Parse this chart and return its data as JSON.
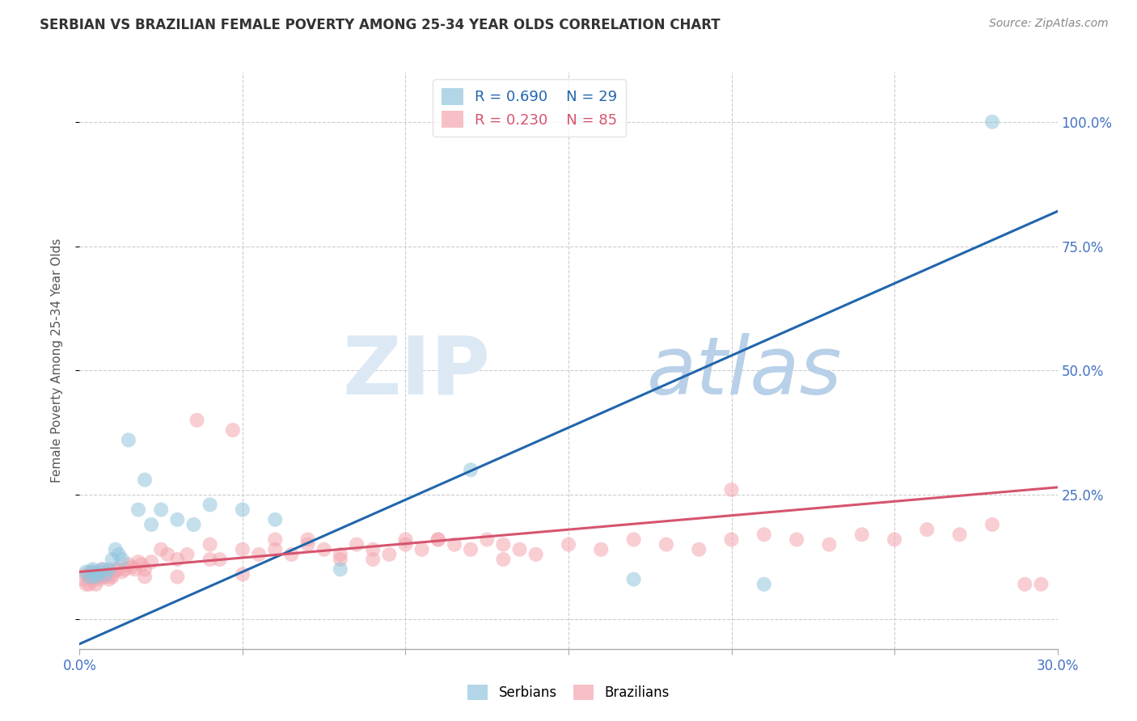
{
  "title": "SERBIAN VS BRAZILIAN FEMALE POVERTY AMONG 25-34 YEAR OLDS CORRELATION CHART",
  "source": "Source: ZipAtlas.com",
  "ylabel": "Female Poverty Among 25-34 Year Olds",
  "xlim": [
    0.0,
    0.3
  ],
  "ylim": [
    -0.06,
    1.1
  ],
  "ytick_positions": [
    0.0,
    0.25,
    0.5,
    0.75,
    1.0
  ],
  "ytick_labels": [
    "",
    "25.0%",
    "50.0%",
    "75.0%",
    "100.0%"
  ],
  "serbian_color": "#92c5de",
  "brazilian_color": "#f4a6b0",
  "serbian_line_color": "#2166ac",
  "brazilian_line_color": "#d6546e",
  "serbian_R": 0.69,
  "serbian_N": 29,
  "brazilian_R": 0.23,
  "brazilian_N": 85,
  "watermark_zip_color": "#dce9f5",
  "watermark_atlas_color": "#b8d0e8",
  "grid_color": "#cccccc",
  "background_color": "#ffffff",
  "serb_line_x": [
    0.0,
    0.3
  ],
  "serb_line_y": [
    -0.05,
    0.82
  ],
  "braz_line_x": [
    0.0,
    0.3
  ],
  "braz_line_y": [
    0.095,
    0.265
  ],
  "serbian_x": [
    0.002,
    0.003,
    0.004,
    0.004,
    0.005,
    0.005,
    0.006,
    0.007,
    0.008,
    0.009,
    0.01,
    0.011,
    0.012,
    0.013,
    0.015,
    0.018,
    0.02,
    0.022,
    0.025,
    0.03,
    0.035,
    0.04,
    0.05,
    0.06,
    0.08,
    0.12,
    0.17,
    0.21,
    0.28
  ],
  "serbian_y": [
    0.095,
    0.085,
    0.095,
    0.1,
    0.085,
    0.09,
    0.095,
    0.1,
    0.09,
    0.1,
    0.12,
    0.14,
    0.13,
    0.12,
    0.36,
    0.22,
    0.28,
    0.19,
    0.22,
    0.2,
    0.19,
    0.23,
    0.22,
    0.2,
    0.1,
    0.3,
    0.08,
    0.07,
    1.0
  ],
  "brazilian_x": [
    0.001,
    0.002,
    0.002,
    0.003,
    0.003,
    0.004,
    0.004,
    0.005,
    0.005,
    0.006,
    0.006,
    0.007,
    0.007,
    0.008,
    0.008,
    0.009,
    0.009,
    0.01,
    0.01,
    0.011,
    0.012,
    0.013,
    0.014,
    0.015,
    0.016,
    0.017,
    0.018,
    0.019,
    0.02,
    0.022,
    0.025,
    0.027,
    0.03,
    0.033,
    0.036,
    0.04,
    0.043,
    0.047,
    0.05,
    0.055,
    0.06,
    0.065,
    0.07,
    0.075,
    0.08,
    0.085,
    0.09,
    0.095,
    0.1,
    0.105,
    0.11,
    0.115,
    0.12,
    0.125,
    0.13,
    0.135,
    0.14,
    0.15,
    0.16,
    0.17,
    0.18,
    0.19,
    0.2,
    0.21,
    0.22,
    0.23,
    0.24,
    0.25,
    0.26,
    0.27,
    0.28,
    0.29,
    0.04,
    0.06,
    0.08,
    0.1,
    0.02,
    0.03,
    0.05,
    0.07,
    0.09,
    0.11,
    0.13,
    0.2,
    0.295
  ],
  "brazilian_y": [
    0.08,
    0.07,
    0.09,
    0.07,
    0.09,
    0.08,
    0.095,
    0.07,
    0.085,
    0.08,
    0.09,
    0.085,
    0.1,
    0.085,
    0.09,
    0.08,
    0.095,
    0.09,
    0.085,
    0.1,
    0.1,
    0.095,
    0.1,
    0.11,
    0.105,
    0.1,
    0.115,
    0.11,
    0.1,
    0.115,
    0.14,
    0.13,
    0.12,
    0.13,
    0.4,
    0.15,
    0.12,
    0.38,
    0.14,
    0.13,
    0.14,
    0.13,
    0.15,
    0.14,
    0.13,
    0.15,
    0.14,
    0.13,
    0.15,
    0.14,
    0.16,
    0.15,
    0.14,
    0.16,
    0.15,
    0.14,
    0.13,
    0.15,
    0.14,
    0.16,
    0.15,
    0.14,
    0.16,
    0.17,
    0.16,
    0.15,
    0.17,
    0.16,
    0.18,
    0.17,
    0.19,
    0.07,
    0.12,
    0.16,
    0.12,
    0.16,
    0.085,
    0.085,
    0.09,
    0.16,
    0.12,
    0.16,
    0.12,
    0.26,
    0.07
  ]
}
